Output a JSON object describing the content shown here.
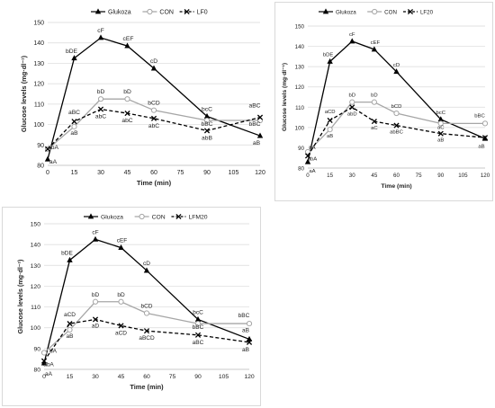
{
  "chart_data": [
    {
      "type": "line",
      "ylabel": "Glucose levels  (mg·dl⁻¹)",
      "xlabel": "Time (min)",
      "x": [
        0,
        15,
        30,
        45,
        60,
        75,
        90,
        105,
        120
      ],
      "ylim": [
        80,
        150
      ],
      "yticks": [
        80,
        90,
        100,
        110,
        120,
        130,
        140,
        150
      ],
      "series": [
        {
          "name": "Glukoza",
          "style": "solid-triangle",
          "color": "#000000",
          "points": [
            [
              0,
              83
            ],
            [
              15,
              132.5
            ],
            [
              30,
              142.5
            ],
            [
              45,
              138.5
            ],
            [
              60,
              127.5
            ],
            [
              90,
              104
            ],
            [
              120,
              94.5
            ]
          ]
        },
        {
          "name": "CON",
          "style": "solid-circle",
          "color": "#a6a6a6",
          "points": [
            [
              0,
              88
            ],
            [
              15,
              99
            ],
            [
              30,
              112.5
            ],
            [
              45,
              112.5
            ],
            [
              60,
              107
            ],
            [
              90,
              102
            ],
            [
              120,
              102
            ]
          ]
        },
        {
          "name": "LF0",
          "style": "dashed-cross",
          "color": "#000000",
          "points": [
            [
              0,
              88
            ],
            [
              15,
              101.5
            ],
            [
              30,
              107.5
            ],
            [
              45,
              105.5
            ],
            [
              60,
              103
            ],
            [
              90,
              97
            ],
            [
              120,
              103.5
            ]
          ]
        }
      ],
      "annotations": [
        {
          "x": 0,
          "y": 83,
          "text": "aA",
          "dx": 6,
          "dy": 5
        },
        {
          "x": 0,
          "y": 88,
          "text": "abA",
          "dx": 6,
          "dy": 0
        },
        {
          "x": 15,
          "y": 132.5,
          "text": "bDE",
          "dx": -3,
          "dy": -6
        },
        {
          "x": 30,
          "y": 142.5,
          "text": "cF",
          "dx": 0,
          "dy": -6
        },
        {
          "x": 45,
          "y": 138.5,
          "text": "cEF",
          "dx": 1,
          "dy": -6
        },
        {
          "x": 60,
          "y": 127.5,
          "text": "cD",
          "dx": 0,
          "dy": -6
        },
        {
          "x": 90,
          "y": 104,
          "text": "bcC",
          "dx": 0,
          "dy": -6
        },
        {
          "x": 120,
          "y": 94.5,
          "text": "aB",
          "dx": -4,
          "dy": 10
        },
        {
          "x": 15,
          "y": 99,
          "text": "aB",
          "dx": 0,
          "dy": 9
        },
        {
          "x": 15,
          "y": 101.5,
          "text": "aBC",
          "dx": 0,
          "dy": -8
        },
        {
          "x": 30,
          "y": 112.5,
          "text": "bD",
          "dx": 0,
          "dy": -6
        },
        {
          "x": 30,
          "y": 107.5,
          "text": "abC",
          "dx": 0,
          "dy": 10
        },
        {
          "x": 45,
          "y": 112.5,
          "text": "bD",
          "dx": 0,
          "dy": -6
        },
        {
          "x": 45,
          "y": 105.5,
          "text": "abC",
          "dx": 0,
          "dy": 10
        },
        {
          "x": 60,
          "y": 107,
          "text": "bCD",
          "dx": 0,
          "dy": -6
        },
        {
          "x": 60,
          "y": 103,
          "text": "abC",
          "dx": 0,
          "dy": 10
        },
        {
          "x": 90,
          "y": 102,
          "text": "bBC",
          "dx": 0,
          "dy": 6
        },
        {
          "x": 90,
          "y": 97,
          "text": "abB",
          "dx": 0,
          "dy": 10
        },
        {
          "x": 120,
          "y": 103.5,
          "text": "aBC",
          "dx": -6,
          "dy": -11
        },
        {
          "x": 120,
          "y": 102,
          "text": "bBC",
          "dx": -6,
          "dy": 6
        }
      ]
    },
    {
      "type": "line",
      "ylabel": "Glucose levels  (mg·dl⁻¹)",
      "xlabel": "Time (min)",
      "x": [
        0,
        15,
        30,
        45,
        60,
        75,
        90,
        105,
        120
      ],
      "ylim": [
        80,
        150
      ],
      "yticks": [
        80,
        90,
        100,
        110,
        120,
        130,
        140,
        150
      ],
      "series": [
        {
          "name": "Glukoza",
          "style": "solid-triangle",
          "color": "#000000",
          "points": [
            [
              0,
              83
            ],
            [
              15,
              132.5
            ],
            [
              30,
              142.5
            ],
            [
              45,
              138.5
            ],
            [
              60,
              127.5
            ],
            [
              90,
              104
            ],
            [
              120,
              94.5
            ]
          ]
        },
        {
          "name": "CON",
          "style": "solid-circle",
          "color": "#a6a6a6",
          "points": [
            [
              0,
              88
            ],
            [
              15,
              99
            ],
            [
              30,
              112.5
            ],
            [
              45,
              112.5
            ],
            [
              60,
              107
            ],
            [
              90,
              102
            ],
            [
              120,
              102
            ]
          ]
        },
        {
          "name": "LF20",
          "style": "dashed-cross",
          "color": "#000000",
          "points": [
            [
              0,
              86
            ],
            [
              15,
              103.5
            ],
            [
              30,
              110
            ],
            [
              45,
              103
            ],
            [
              60,
              101
            ],
            [
              90,
              97
            ],
            [
              120,
              95
            ]
          ]
        }
      ],
      "annotations": [
        {
          "x": 0,
          "y": 88,
          "text": "bA",
          "dx": 5,
          "dy": -3
        },
        {
          "x": 0,
          "y": 86,
          "text": "abA",
          "dx": 5,
          "dy": 5
        },
        {
          "x": 0,
          "y": 83,
          "text": "aA",
          "dx": 5,
          "dy": 12
        },
        {
          "x": 15,
          "y": 132.5,
          "text": "bDE",
          "dx": -2,
          "dy": -6
        },
        {
          "x": 30,
          "y": 142.5,
          "text": "cF",
          "dx": 0,
          "dy": -6
        },
        {
          "x": 45,
          "y": 138.5,
          "text": "cEF",
          "dx": 1,
          "dy": -6
        },
        {
          "x": 60,
          "y": 127.5,
          "text": "cD",
          "dx": 0,
          "dy": -6
        },
        {
          "x": 90,
          "y": 104,
          "text": "bcC",
          "dx": 0,
          "dy": -6
        },
        {
          "x": 120,
          "y": 94.5,
          "text": "aB",
          "dx": -4,
          "dy": 10
        },
        {
          "x": 15,
          "y": 103.5,
          "text": "aCD",
          "dx": 0,
          "dy": -8
        },
        {
          "x": 15,
          "y": 99,
          "text": "aB",
          "dx": 0,
          "dy": 9
        },
        {
          "x": 30,
          "y": 112.5,
          "text": "bD",
          "dx": 0,
          "dy": -6
        },
        {
          "x": 30,
          "y": 110,
          "text": "abD",
          "dx": 0,
          "dy": 9
        },
        {
          "x": 45,
          "y": 112.5,
          "text": "bD",
          "dx": 0,
          "dy": -6
        },
        {
          "x": 45,
          "y": 103,
          "text": "aC",
          "dx": 0,
          "dy": 9
        },
        {
          "x": 60,
          "y": 107,
          "text": "bCD",
          "dx": 0,
          "dy": -6
        },
        {
          "x": 60,
          "y": 101,
          "text": "abBC",
          "dx": 0,
          "dy": 9
        },
        {
          "x": 90,
          "y": 102,
          "text": "aC",
          "dx": 0,
          "dy": 6
        },
        {
          "x": 90,
          "y": 97,
          "text": "aB",
          "dx": 0,
          "dy": 9
        },
        {
          "x": 120,
          "y": 102,
          "text": "bBC",
          "dx": -6,
          "dy": -7
        }
      ]
    },
    {
      "type": "line",
      "ylabel": "Glucose levels  (mg·dl⁻¹)",
      "xlabel": "Time (min)",
      "x": [
        0,
        15,
        30,
        45,
        60,
        75,
        90,
        105,
        120
      ],
      "ylim": [
        80,
        150
      ],
      "yticks": [
        80,
        90,
        100,
        110,
        120,
        130,
        140,
        150
      ],
      "series": [
        {
          "name": "Glukoza",
          "style": "solid-triangle",
          "color": "#000000",
          "points": [
            [
              0,
              83
            ],
            [
              15,
              132.5
            ],
            [
              30,
              142.5
            ],
            [
              45,
              138.5
            ],
            [
              60,
              127.5
            ],
            [
              90,
              104
            ],
            [
              120,
              94.5
            ]
          ]
        },
        {
          "name": "CON",
          "style": "solid-circle",
          "color": "#a6a6a6",
          "points": [
            [
              0,
              88
            ],
            [
              15,
              99
            ],
            [
              30,
              112.5
            ],
            [
              45,
              112.5
            ],
            [
              60,
              107
            ],
            [
              90,
              102
            ],
            [
              120,
              102
            ]
          ]
        },
        {
          "name": "LFM20",
          "style": "dashed-cross",
          "color": "#000000",
          "points": [
            [
              0,
              84
            ],
            [
              15,
              102
            ],
            [
              30,
              104
            ],
            [
              45,
              101
            ],
            [
              60,
              98.5
            ],
            [
              90,
              96.5
            ],
            [
              120,
              93
            ]
          ]
        }
      ],
      "annotations": [
        {
          "x": 0,
          "y": 88,
          "text": "bA",
          "dx": 10,
          "dy": 0
        },
        {
          "x": 0,
          "y": 84,
          "text": "abA",
          "dx": 5,
          "dy": 6
        },
        {
          "x": 0,
          "y": 83,
          "text": "aA",
          "dx": 5,
          "dy": 14
        },
        {
          "x": 15,
          "y": 132.5,
          "text": "bDE",
          "dx": -3,
          "dy": -6
        },
        {
          "x": 30,
          "y": 142.5,
          "text": "cF",
          "dx": 0,
          "dy": -6
        },
        {
          "x": 45,
          "y": 138.5,
          "text": "cEF",
          "dx": 1,
          "dy": -6
        },
        {
          "x": 60,
          "y": 127.5,
          "text": "cD",
          "dx": 0,
          "dy": -6
        },
        {
          "x": 90,
          "y": 104,
          "text": "bcC",
          "dx": 0,
          "dy": -6
        },
        {
          "x": 120,
          "y": 94.5,
          "text": "aB",
          "dx": -4,
          "dy": -8
        },
        {
          "x": 120,
          "y": 93,
          "text": "aB",
          "dx": -4,
          "dy": 10
        },
        {
          "x": 15,
          "y": 102,
          "text": "aCD",
          "dx": 0,
          "dy": -8
        },
        {
          "x": 15,
          "y": 99,
          "text": "aB",
          "dx": 0,
          "dy": 9
        },
        {
          "x": 30,
          "y": 112.5,
          "text": "bD",
          "dx": 0,
          "dy": -6
        },
        {
          "x": 30,
          "y": 104,
          "text": "aD",
          "dx": 0,
          "dy": 9
        },
        {
          "x": 45,
          "y": 112.5,
          "text": "bD",
          "dx": 0,
          "dy": -6
        },
        {
          "x": 45,
          "y": 101,
          "text": "aCD",
          "dx": 0,
          "dy": 10
        },
        {
          "x": 60,
          "y": 107,
          "text": "bCD",
          "dx": 0,
          "dy": -6
        },
        {
          "x": 60,
          "y": 98.5,
          "text": "aBCD",
          "dx": 0,
          "dy": 10
        },
        {
          "x": 90,
          "y": 102,
          "text": "bBC",
          "dx": 0,
          "dy": 6
        },
        {
          "x": 90,
          "y": 96.5,
          "text": "aBC",
          "dx": 0,
          "dy": 10
        },
        {
          "x": 120,
          "y": 102,
          "text": "bBC",
          "dx": -6,
          "dy": -7
        }
      ]
    }
  ]
}
